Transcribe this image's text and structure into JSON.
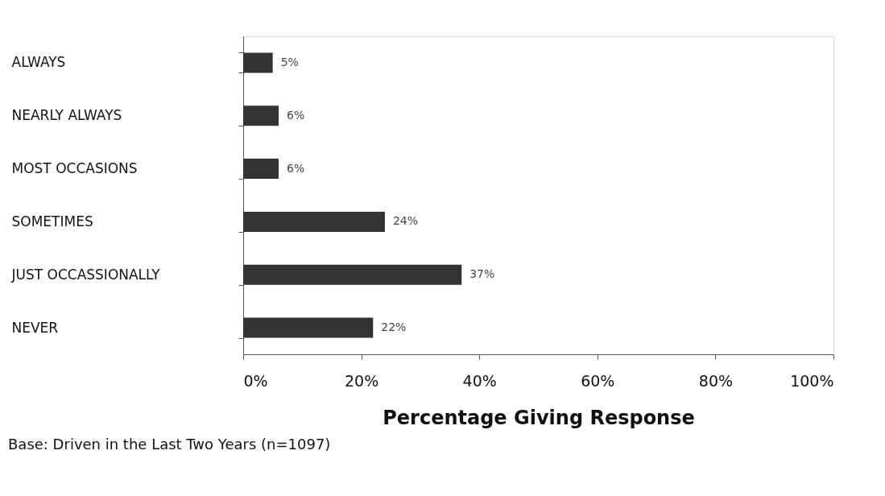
{
  "chart_data": {
    "type": "bar",
    "orientation": "horizontal",
    "categories": [
      "ALWAYS",
      "NEARLY ALWAYS",
      "MOST OCCASIONS",
      "SOMETIMES",
      "JUST OCCASSIONALLY",
      "NEVER"
    ],
    "values": [
      5,
      6,
      6,
      24,
      37,
      22
    ],
    "value_labels": [
      "5%",
      "6%",
      "6%",
      "24%",
      "37%",
      "22%"
    ],
    "color": "#333333",
    "xlabel": "Percentage Giving Response",
    "xlim": [
      0,
      100
    ],
    "xticks": [
      {
        "value": 0,
        "label": "0%"
      },
      {
        "value": 20,
        "label": "20%"
      },
      {
        "value": 40,
        "label": "40%"
      },
      {
        "value": 60,
        "label": "60%"
      },
      {
        "value": 80,
        "label": "80%"
      },
      {
        "value": 100,
        "label": "100%"
      }
    ],
    "grid": false,
    "annotations": [
      "Base:  Driven in the Last Two Years (n=1097)"
    ]
  }
}
